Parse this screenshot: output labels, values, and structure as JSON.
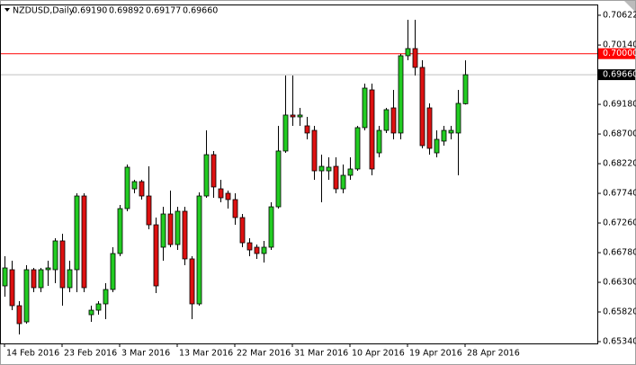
{
  "chart_data": {
    "type": "candlestick",
    "title": "NZDUSD,Daily",
    "header_values": [
      {
        "value": 0.6919,
        "label": "0.69190"
      },
      {
        "value": 0.69892,
        "label": "0.69892"
      },
      {
        "value": 0.69177,
        "label": "0.69177"
      },
      {
        "value": 0.6966,
        "label": "0.69660"
      }
    ],
    "categories": [
      "14 Feb 2016",
      null,
      null,
      null,
      null,
      null,
      null,
      null,
      "23 Feb 2016",
      null,
      null,
      null,
      null,
      null,
      null,
      null,
      "3 Mar 2016",
      null,
      null,
      null,
      null,
      null,
      null,
      null,
      "13 Mar 2016",
      null,
      null,
      null,
      null,
      null,
      null,
      null,
      "22 Mar 2016",
      null,
      null,
      null,
      null,
      null,
      null,
      null,
      "31 Mar 2016",
      null,
      null,
      null,
      null,
      null,
      null,
      null,
      "10 Apr 2016",
      null,
      null,
      null,
      null,
      null,
      null,
      null,
      "19 Apr 2016",
      null,
      null,
      null,
      null,
      null,
      null,
      null,
      "28 Apr 2016"
    ],
    "open": [
      0.66242,
      0.66504,
      0.65922,
      0.6566,
      0.66504,
      0.66213,
      0.66504,
      0.66504,
      0.6697,
      0.66213,
      0.66504,
      0.67697,
      0.65776,
      0.65849,
      0.65951,
      0.66184,
      0.66766,
      0.67493,
      0.67813,
      0.6793,
      0.67697,
      0.67231,
      0.66868,
      0.67406,
      0.66911,
      0.6745,
      0.66679,
      0.65951,
      0.67697,
      0.68366,
      0.67813,
      0.67741,
      0.67639,
      0.67348,
      0.6694,
      0.66868,
      0.66766,
      0.66868,
      0.67522,
      0.68425,
      0.69007,
      0.68977,
      0.68832,
      0.68759,
      0.68104,
      0.68104,
      0.68177,
      0.67813,
      0.68032,
      0.68134,
      0.68803,
      0.69414,
      0.68395,
      0.68759,
      0.69123,
      0.68716,
      0.69967,
      0.70083,
      0.69778,
      0.69123,
      0.68395,
      0.68585,
      0.68716,
      0.68716,
      0.6919
    ],
    "high": [
      0.66722,
      0.66649,
      0.65995,
      0.66577,
      0.66533,
      0.66533,
      0.66649,
      0.67013,
      0.67086,
      0.66649,
      0.67741,
      0.67741,
      0.65922,
      0.65995,
      0.66286,
      0.66868,
      0.67552,
      0.68206,
      0.67959,
      0.67959,
      0.68177,
      0.67348,
      0.67522,
      0.67784,
      0.67522,
      0.67522,
      0.66722,
      0.67755,
      0.68759,
      0.68425,
      0.67959,
      0.67784,
      0.67741,
      0.67406,
      0.67013,
      0.66911,
      0.6697,
      0.67595,
      0.68832,
      0.69647,
      0.69647,
      0.69123,
      0.68977,
      0.68832,
      0.68366,
      0.68323,
      0.68323,
      0.68206,
      0.68323,
      0.68832,
      0.69516,
      0.69516,
      0.68832,
      0.69123,
      0.69414,
      0.69996,
      0.70549,
      0.70549,
      0.69894,
      0.69196,
      0.68759,
      0.68832,
      0.68832,
      0.69414,
      0.69892
    ],
    "low": [
      0.66067,
      0.65849,
      0.65456,
      0.65631,
      0.6614,
      0.6614,
      0.66242,
      0.66286,
      0.65922,
      0.6614,
      0.6614,
      0.6614,
      0.6566,
      0.65776,
      0.65704,
      0.6614,
      0.66722,
      0.6745,
      0.67741,
      0.67639,
      0.67159,
      0.66126,
      0.66649,
      0.66868,
      0.66824,
      0.66577,
      0.65704,
      0.65922,
      0.67668,
      0.67668,
      0.67595,
      0.67493,
      0.67231,
      0.66868,
      0.66722,
      0.66679,
      0.6662,
      0.66824,
      0.67493,
      0.68395,
      0.68832,
      0.68832,
      0.68614,
      0.67959,
      0.67595,
      0.67959,
      0.67741,
      0.67741,
      0.67959,
      0.68104,
      0.68759,
      0.68032,
      0.68323,
      0.68716,
      0.68614,
      0.68614,
      0.69894,
      0.69647,
      0.68468,
      0.68366,
      0.68323,
      0.68512,
      0.68614,
      0.68032,
      0.69177
    ],
    "close": [
      0.66533,
      0.65922,
      0.65631,
      0.66504,
      0.66213,
      0.66504,
      0.66533,
      0.6697,
      0.66213,
      0.66504,
      0.67697,
      0.66213,
      0.65849,
      0.65951,
      0.66184,
      0.66766,
      0.67493,
      0.68163,
      0.6793,
      0.67697,
      0.67231,
      0.66242,
      0.67406,
      0.66911,
      0.6745,
      0.66679,
      0.65951,
      0.67697,
      0.68366,
      0.67843,
      0.67668,
      0.67639,
      0.67348,
      0.6694,
      0.66824,
      0.66766,
      0.66868,
      0.67522,
      0.68425,
      0.69007,
      0.68977,
      0.69007,
      0.68716,
      0.68104,
      0.68177,
      0.68163,
      0.67813,
      0.68032,
      0.68134,
      0.68803,
      0.69443,
      0.68134,
      0.68759,
      0.69094,
      0.68716,
      0.69967,
      0.70083,
      0.69778,
      0.68512,
      0.68468,
      0.68614,
      0.68759,
      0.68759,
      0.69196,
      0.6966
    ],
    "up_color": "#22cc22",
    "down_color": "#dd1111",
    "ylim": [
      0.65311,
      0.70796
    ],
    "yticks": [
      0.70622,
      {
        "value": 0.7014,
        "label": "0.70140"
      },
      {
        "value": 0.6918,
        "label": "0.69180"
      },
      {
        "value": 0.687,
        "label": "0.68700"
      },
      {
        "value": 0.6822,
        "label": "0.68220"
      },
      {
        "value": 0.6774,
        "label": "0.67740"
      },
      {
        "value": 0.6726,
        "label": "0.67260"
      },
      {
        "value": 0.6678,
        "label": "0.66780"
      },
      {
        "value": 0.663,
        "label": "0.66300"
      },
      {
        "value": 0.6582,
        "label": "0.65820"
      },
      {
        "value": 0.6534,
        "label": "0.65340"
      }
    ],
    "hlines": [
      {
        "value": 0.7,
        "label": "0.70000",
        "color": "#ff0000",
        "label_color": "#ff0000"
      },
      {
        "value": 0.6966,
        "label": "0.69660",
        "color": "#c0c0c0",
        "label_color": "#000000"
      }
    ]
  }
}
